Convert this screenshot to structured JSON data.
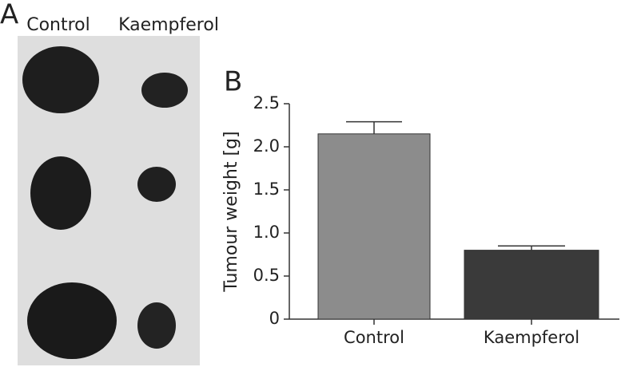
{
  "panel_a": {
    "label": "A",
    "columns": [
      "Control",
      "Kaempferol"
    ]
  },
  "chart_data": {
    "type": "bar",
    "panel_label": "B",
    "ylabel": "Tumour weight [g]",
    "categories": [
      "Control",
      "Kaempferol"
    ],
    "values": [
      2.15,
      0.8
    ],
    "errors": [
      0.14,
      0.05
    ],
    "colors": [
      "#8c8c8c",
      "#3a3a3a"
    ],
    "ylim": [
      0,
      2.5
    ],
    "yticks": [
      0,
      0.5,
      {
        "value": 1,
        "label": "1.0"
      },
      1.5,
      {
        "value": 2,
        "label": "2.0"
      },
      2.5
    ]
  }
}
